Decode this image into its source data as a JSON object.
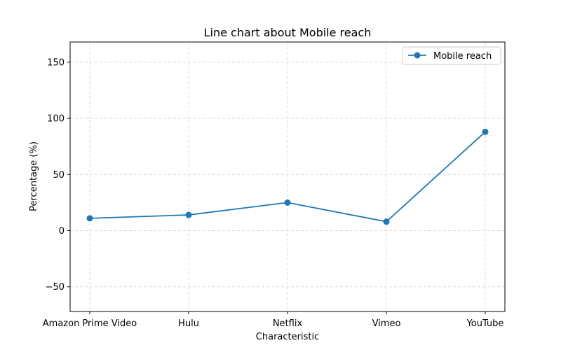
{
  "chart_data": {
    "type": "line",
    "title": "Line chart about Mobile reach",
    "xlabel": "Characteristic",
    "ylabel": "Percentage (%)",
    "categories": [
      "Amazon Prime Video",
      "Hulu",
      "Netflix",
      "Vimeo",
      "YouTube"
    ],
    "series": [
      {
        "name": "Mobile reach",
        "values": [
          11,
          14,
          25,
          8,
          88
        ],
        "color": "#1f77b4"
      }
    ],
    "ylim": [
      -72,
      168
    ],
    "yticks": [
      -50,
      0,
      50,
      100,
      150
    ],
    "ytick_labels": [
      "−50",
      "0",
      "50",
      "100",
      "150"
    ],
    "grid": true,
    "legend_position": "top-right"
  }
}
